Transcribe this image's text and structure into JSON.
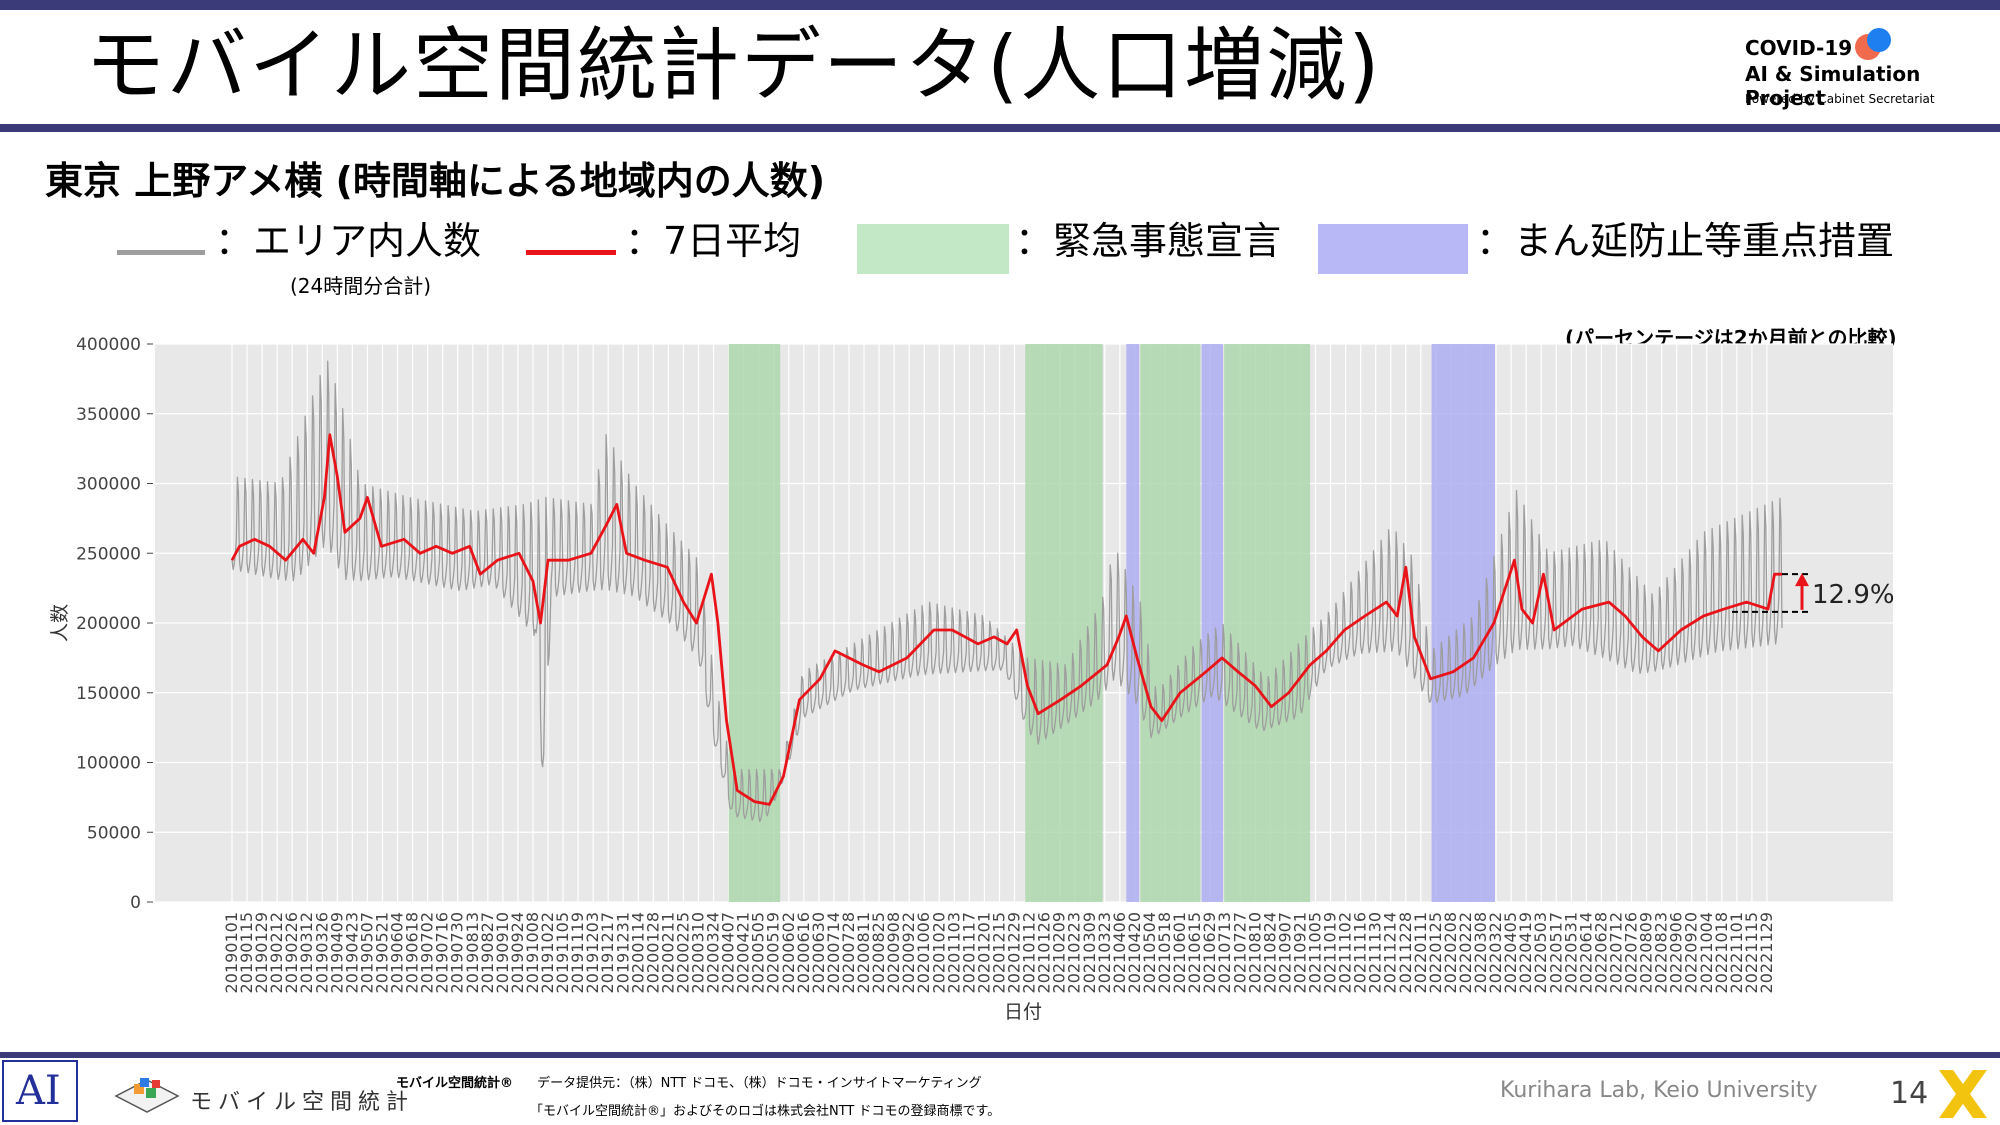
{
  "slide": {
    "title": "モバイル空間統計データ(人口増減)",
    "subtitle": "東京 上野アメ横 (時間軸による地域内の人数)",
    "page_number": "14",
    "footer_lab": "Kurihara Lab, Keio University",
    "footer_brand_bold": "モバイル空間統計®",
    "footer_provider": "データ提供元：（株）NTT ドコモ、（株）ドコモ・インサイトマーケティング",
    "footer_trademark": "「モバイル空間統計®」およびそのロゴは株式会社NTT ドコモの登録商標です。",
    "footer_logo_name": "モバイル空間統計",
    "logo_line1": "COVID-19",
    "logo_line2": "AI & Simulation Project",
    "logo_line3": "Powered by Cabinet Secretariat",
    "logo_ai": "AI"
  },
  "legend": {
    "area_count": "：エリア内人数",
    "area_count_note": "(24時間分合計)",
    "avg7": "：7日平均",
    "emergency": "：緊急事態宣言",
    "manen": "：まん延防止等重点措置"
  },
  "colors": {
    "raw": "#9e9e9e",
    "avg": "#e8141a",
    "emergency": "#a9d6a9",
    "manen": "#a9a9f2",
    "plot_bg": "#e8e8e8",
    "header_bar": "#3b3b7a"
  },
  "chart_data": {
    "type": "line",
    "note": "(パーセンテージは2か月前との比較)",
    "xlabel": "日付",
    "ylabel": "人数",
    "ylim": [
      0,
      400000
    ],
    "yticks": [
      0,
      50000,
      100000,
      150000,
      200000,
      250000,
      300000,
      350000,
      400000
    ],
    "grid": true,
    "date_range": [
      "2019-01-01",
      "2022-12-13"
    ],
    "x_tick_labels": [
      "20190101",
      "20190115",
      "20190129",
      "20190212",
      "20190226",
      "20190312",
      "20190326",
      "20190409",
      "20190423",
      "20190507",
      "20190521",
      "20190604",
      "20190618",
      "20190702",
      "20190716",
      "20190730",
      "20190813",
      "20190827",
      "20190910",
      "20190924",
      "20191008",
      "20191022",
      "20191105",
      "20191119",
      "20191203",
      "20191217",
      "20191231",
      "20200114",
      "20200128",
      "20200211",
      "20200225",
      "20200310",
      "20200324",
      "20200407",
      "20200421",
      "20200505",
      "20200519",
      "20200602",
      "20200616",
      "20200630",
      "20200714",
      "20200728",
      "20200811",
      "20200825",
      "20200908",
      "20200922",
      "20201006",
      "20201020",
      "20201103",
      "20201117",
      "20201201",
      "20201215",
      "20201229",
      "20210112",
      "20210126",
      "20210209",
      "20210223",
      "20210309",
      "20210323",
      "20210406",
      "20210420",
      "20210504",
      "20210518",
      "20210601",
      "20210615",
      "20210629",
      "20210713",
      "20210727",
      "20210810",
      "20210824",
      "20210907",
      "20210921",
      "20211005",
      "20211019",
      "20211102",
      "20211116",
      "20211130",
      "20211214",
      "20211228",
      "20220111",
      "20220125",
      "20220208",
      "20220222",
      "20220308",
      "20220322",
      "20220405",
      "20220419",
      "20220503",
      "20220517",
      "20220531",
      "20220614",
      "20220628",
      "20220712",
      "20220726",
      "20220809",
      "20220823",
      "20220906",
      "20220920",
      "20221004",
      "20221018",
      "20221101",
      "20221115",
      "20221129"
    ],
    "series": [
      {
        "name": "エリア内人数",
        "style": "thin gray, weekly oscillation between low and high envelopes",
        "low_envelope": [
          [
            "2019-01-01",
            235000
          ],
          [
            "2019-03-01",
            225000
          ],
          [
            "2019-03-30",
            250000
          ],
          [
            "2019-04-15",
            225000
          ],
          [
            "2019-06-01",
            230000
          ],
          [
            "2019-08-01",
            220000
          ],
          [
            "2019-09-01",
            225000
          ],
          [
            "2019-10-10",
            185000
          ],
          [
            "2019-10-18",
            60000
          ],
          [
            "2019-10-25",
            215000
          ],
          [
            "2019-12-01",
            220000
          ],
          [
            "2020-01-10",
            215000
          ],
          [
            "2020-02-15",
            195000
          ],
          [
            "2020-03-10",
            170000
          ],
          [
            "2020-03-25",
            110000
          ],
          [
            "2020-04-10",
            60000
          ],
          [
            "2020-05-10",
            55000
          ],
          [
            "2020-05-25",
            80000
          ],
          [
            "2020-06-15",
            130000
          ],
          [
            "2020-08-01",
            150000
          ],
          [
            "2020-10-01",
            160000
          ],
          [
            "2020-12-20",
            165000
          ],
          [
            "2021-01-10",
            120000
          ],
          [
            "2021-01-20",
            110000
          ],
          [
            "2021-02-15",
            125000
          ],
          [
            "2021-03-15",
            140000
          ],
          [
            "2021-04-01",
            155000
          ],
          [
            "2021-04-20",
            140000
          ],
          [
            "2021-05-05",
            115000
          ],
          [
            "2021-06-01",
            130000
          ],
          [
            "2021-07-01",
            145000
          ],
          [
            "2021-08-15",
            120000
          ],
          [
            "2021-09-20",
            130000
          ],
          [
            "2021-10-15",
            165000
          ],
          [
            "2021-11-15",
            175000
          ],
          [
            "2021-12-20",
            175000
          ],
          [
            "2022-01-10",
            150000
          ],
          [
            "2022-01-20",
            140000
          ],
          [
            "2022-02-20",
            145000
          ],
          [
            "2022-03-20",
            165000
          ],
          [
            "2022-04-10",
            175000
          ],
          [
            "2022-06-01",
            180000
          ],
          [
            "2022-08-01",
            160000
          ],
          [
            "2022-09-01",
            165000
          ],
          [
            "2022-10-15",
            175000
          ],
          [
            "2022-12-13",
            180000
          ]
        ],
        "high_envelope": [
          [
            "2019-01-01",
            305000
          ],
          [
            "2019-02-15",
            300000
          ],
          [
            "2019-03-30",
            390000
          ],
          [
            "2019-04-12",
            360000
          ],
          [
            "2019-05-01",
            300000
          ],
          [
            "2019-06-15",
            290000
          ],
          [
            "2019-08-15",
            280000
          ],
          [
            "2019-10-01",
            285000
          ],
          [
            "2019-10-20",
            290000
          ],
          [
            "2019-12-01",
            285000
          ],
          [
            "2019-12-15",
            335000
          ],
          [
            "2020-01-10",
            300000
          ],
          [
            "2020-02-10",
            270000
          ],
          [
            "2020-03-10",
            245000
          ],
          [
            "2020-03-25",
            160000
          ],
          [
            "2020-04-10",
            95000
          ],
          [
            "2020-05-25",
            95000
          ],
          [
            "2020-06-15",
            165000
          ],
          [
            "2020-08-01",
            185000
          ],
          [
            "2020-10-10",
            215000
          ],
          [
            "2020-12-01",
            205000
          ],
          [
            "2021-01-10",
            175000
          ],
          [
            "2021-02-15",
            170000
          ],
          [
            "2021-03-20",
            215000
          ],
          [
            "2021-04-01",
            255000
          ],
          [
            "2021-04-25",
            215000
          ],
          [
            "2021-05-10",
            150000
          ],
          [
            "2021-06-15",
            185000
          ],
          [
            "2021-07-10",
            200000
          ],
          [
            "2021-08-20",
            160000
          ],
          [
            "2021-10-01",
            195000
          ],
          [
            "2021-10-20",
            210000
          ],
          [
            "2021-12-15",
            270000
          ],
          [
            "2022-01-05",
            245000
          ],
          [
            "2022-01-20",
            180000
          ],
          [
            "2022-03-01",
            205000
          ],
          [
            "2022-04-10",
            295000
          ],
          [
            "2022-05-10",
            250000
          ],
          [
            "2022-07-01",
            260000
          ],
          [
            "2022-08-15",
            220000
          ],
          [
            "2022-10-01",
            265000
          ],
          [
            "2022-12-13",
            290000
          ]
        ]
      },
      {
        "name": "7日平均",
        "points": [
          [
            "2019-01-01",
            245000
          ],
          [
            "2019-01-08",
            255000
          ],
          [
            "2019-01-22",
            260000
          ],
          [
            "2019-02-05",
            255000
          ],
          [
            "2019-02-20",
            245000
          ],
          [
            "2019-03-08",
            260000
          ],
          [
            "2019-03-18",
            250000
          ],
          [
            "2019-03-28",
            290000
          ],
          [
            "2019-04-02",
            335000
          ],
          [
            "2019-04-09",
            305000
          ],
          [
            "2019-04-16",
            265000
          ],
          [
            "2019-04-30",
            275000
          ],
          [
            "2019-05-07",
            290000
          ],
          [
            "2019-05-20",
            255000
          ],
          [
            "2019-06-10",
            260000
          ],
          [
            "2019-06-25",
            250000
          ],
          [
            "2019-07-10",
            255000
          ],
          [
            "2019-07-25",
            250000
          ],
          [
            "2019-08-10",
            255000
          ],
          [
            "2019-08-20",
            235000
          ],
          [
            "2019-09-05",
            245000
          ],
          [
            "2019-09-25",
            250000
          ],
          [
            "2019-10-08",
            230000
          ],
          [
            "2019-10-15",
            200000
          ],
          [
            "2019-10-22",
            245000
          ],
          [
            "2019-11-10",
            245000
          ],
          [
            "2019-12-01",
            250000
          ],
          [
            "2019-12-15",
            270000
          ],
          [
            "2019-12-25",
            285000
          ],
          [
            "2020-01-03",
            250000
          ],
          [
            "2020-01-20",
            245000
          ],
          [
            "2020-02-10",
            240000
          ],
          [
            "2020-02-25",
            215000
          ],
          [
            "2020-03-08",
            200000
          ],
          [
            "2020-03-22",
            235000
          ],
          [
            "2020-03-28",
            200000
          ],
          [
            "2020-04-05",
            130000
          ],
          [
            "2020-04-15",
            80000
          ],
          [
            "2020-05-01",
            72000
          ],
          [
            "2020-05-15",
            70000
          ],
          [
            "2020-05-28",
            90000
          ],
          [
            "2020-06-12",
            145000
          ],
          [
            "2020-07-01",
            160000
          ],
          [
            "2020-07-15",
            180000
          ],
          [
            "2020-08-10",
            170000
          ],
          [
            "2020-08-25",
            165000
          ],
          [
            "2020-09-20",
            175000
          ],
          [
            "2020-10-15",
            195000
          ],
          [
            "2020-11-01",
            195000
          ],
          [
            "2020-11-25",
            185000
          ],
          [
            "2020-12-10",
            190000
          ],
          [
            "2020-12-22",
            185000
          ],
          [
            "2020-12-31",
            195000
          ],
          [
            "2021-01-10",
            155000
          ],
          [
            "2021-01-20",
            135000
          ],
          [
            "2021-02-10",
            145000
          ],
          [
            "2021-03-01",
            155000
          ],
          [
            "2021-03-25",
            170000
          ],
          [
            "2021-04-05",
            190000
          ],
          [
            "2021-04-12",
            205000
          ],
          [
            "2021-04-22",
            175000
          ],
          [
            "2021-05-05",
            140000
          ],
          [
            "2021-05-15",
            130000
          ],
          [
            "2021-06-01",
            150000
          ],
          [
            "2021-06-25",
            165000
          ],
          [
            "2021-07-10",
            175000
          ],
          [
            "2021-07-25",
            165000
          ],
          [
            "2021-08-10",
            155000
          ],
          [
            "2021-08-25",
            140000
          ],
          [
            "2021-09-10",
            150000
          ],
          [
            "2021-09-30",
            170000
          ],
          [
            "2021-10-15",
            180000
          ],
          [
            "2021-11-01",
            195000
          ],
          [
            "2021-11-20",
            205000
          ],
          [
            "2021-12-10",
            215000
          ],
          [
            "2021-12-20",
            205000
          ],
          [
            "2021-12-28",
            240000
          ],
          [
            "2022-01-05",
            190000
          ],
          [
            "2022-01-20",
            160000
          ],
          [
            "2022-02-10",
            165000
          ],
          [
            "2022-03-01",
            175000
          ],
          [
            "2022-03-20",
            200000
          ],
          [
            "2022-04-08",
            245000
          ],
          [
            "2022-04-15",
            210000
          ],
          [
            "2022-04-25",
            200000
          ],
          [
            "2022-05-05",
            235000
          ],
          [
            "2022-05-15",
            195000
          ],
          [
            "2022-06-10",
            210000
          ],
          [
            "2022-07-05",
            215000
          ],
          [
            "2022-07-20",
            205000
          ],
          [
            "2022-08-05",
            190000
          ],
          [
            "2022-08-20",
            180000
          ],
          [
            "2022-09-10",
            195000
          ],
          [
            "2022-10-01",
            205000
          ],
          [
            "2022-10-20",
            210000
          ],
          [
            "2022-11-10",
            215000
          ],
          [
            "2022-11-30",
            210000
          ],
          [
            "2022-12-06",
            235000
          ],
          [
            "2022-12-13",
            235000
          ]
        ]
      }
    ],
    "spans": [
      {
        "type": "緊急事態宣言",
        "start": "2020-04-07",
        "end": "2020-05-25"
      },
      {
        "type": "緊急事態宣言",
        "start": "2021-01-08",
        "end": "2021-03-21"
      },
      {
        "type": "まん延防止等重点措置",
        "start": "2021-04-12",
        "end": "2021-04-24"
      },
      {
        "type": "緊急事態宣言",
        "start": "2021-04-25",
        "end": "2021-06-20"
      },
      {
        "type": "まん延防止等重点措置",
        "start": "2021-06-21",
        "end": "2021-07-11"
      },
      {
        "type": "緊急事態宣言",
        "start": "2021-07-12",
        "end": "2021-09-30"
      },
      {
        "type": "まん延防止等重点措置",
        "start": "2022-01-21",
        "end": "2022-03-21"
      }
    ],
    "annotation": {
      "label": "12.9%",
      "from_value": 208000,
      "to_value": 235000,
      "date": "2022-12-13"
    }
  }
}
